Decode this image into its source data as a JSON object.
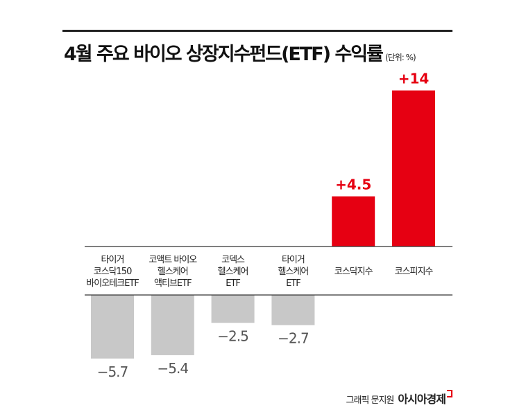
{
  "chart_data": {
    "type": "bar",
    "title": "4월 주요 바이오 상장지수펀드(ETF) 수익률",
    "unit": "(단위: %)",
    "categories": [
      [
        "타이거",
        "코스닥150",
        "바이오테크ETF"
      ],
      [
        "코액트 바이오",
        "헬스케어",
        "액티브ETF"
      ],
      [
        "코덱스",
        "헬스케어",
        "ETF"
      ],
      [
        "타이거",
        "헬스케어",
        "ETF"
      ],
      [
        "코스닥지수"
      ],
      [
        "코스피지수"
      ]
    ],
    "values": [
      -5.7,
      -5.4,
      -2.5,
      -2.7,
      4.5,
      14
    ],
    "value_labels": [
      "−5.7",
      "−5.4",
      "−2.5",
      "−2.7",
      "+4.5",
      "+14"
    ],
    "colors": {
      "positive": "#e60012",
      "negative": "#c8c8c8",
      "negative_label": "#555555"
    },
    "grid": false
  },
  "credit": {
    "text": "그래픽 문지원",
    "logo": "아시아경제"
  }
}
